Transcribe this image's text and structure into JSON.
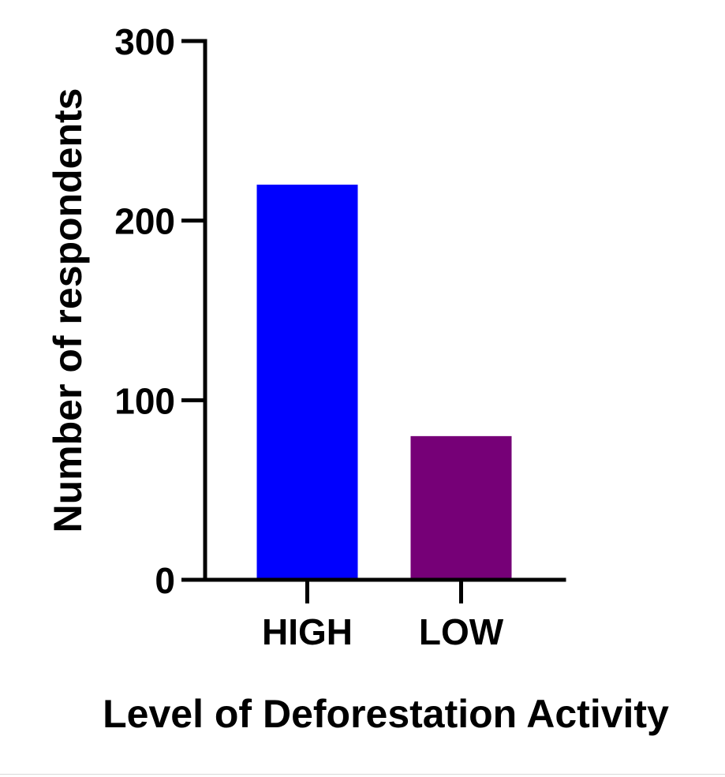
{
  "chart_data": {
    "type": "bar",
    "categories": [
      "HIGH",
      "LOW"
    ],
    "values": [
      220,
      80
    ],
    "colors": [
      "#0000ff",
      "#760077"
    ],
    "title": "",
    "xlabel": "Level of Deforestation Activity",
    "ylabel": "Number of respondents",
    "ylim": [
      0,
      300
    ],
    "yticks": [
      0,
      100,
      200,
      300
    ],
    "grid": false,
    "legend": "none"
  }
}
